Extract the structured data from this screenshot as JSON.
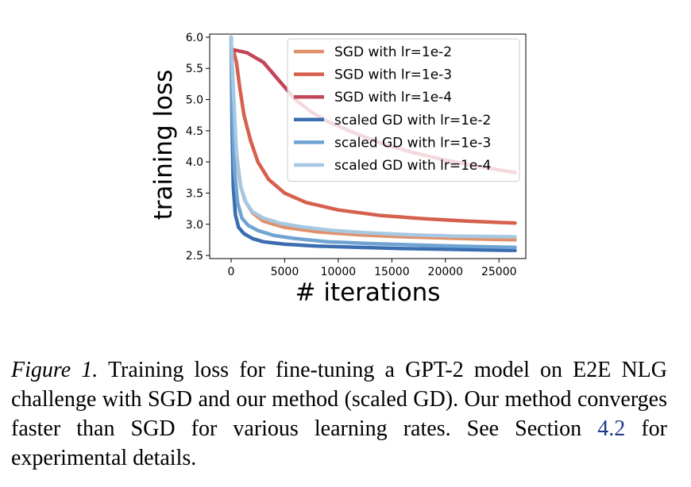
{
  "chart_data": {
    "type": "line",
    "xlabel": "# iterations",
    "ylabel": "training loss",
    "xlim": [
      -2000,
      27500
    ],
    "ylim": [
      2.45,
      6.05
    ],
    "xticks": [
      0,
      5000,
      10000,
      15000,
      20000,
      25000
    ],
    "xtick_labels": [
      "0",
      "5000",
      "10000",
      "15000",
      "20000",
      "25000"
    ],
    "yticks": [
      2.5,
      3.0,
      3.5,
      4.0,
      4.5,
      5.0,
      5.5,
      6.0
    ],
    "ytick_labels": [
      "2.5",
      "3.0",
      "3.5",
      "4.0",
      "4.5",
      "5.0",
      "5.5",
      "6.0"
    ],
    "grid": false,
    "legend_position": "top-right",
    "series": [
      {
        "name": "SGD with lr=1e-2",
        "color": "#e0916a",
        "x": [
          0,
          300,
          600,
          900,
          1300,
          2000,
          3000,
          5000,
          8000,
          12000,
          16000,
          20000,
          24000,
          26500
        ],
        "y": [
          5.8,
          4.6,
          3.95,
          3.6,
          3.38,
          3.18,
          3.05,
          2.95,
          2.88,
          2.83,
          2.8,
          2.78,
          2.76,
          2.75
        ]
      },
      {
        "name": "SGD with lr=1e-3",
        "color": "#d6604d",
        "x": [
          200,
          500,
          800,
          1200,
          1800,
          2500,
          3500,
          5000,
          7000,
          10000,
          14000,
          18000,
          22000,
          26500
        ],
        "y": [
          5.8,
          5.6,
          5.2,
          4.75,
          4.35,
          4.0,
          3.72,
          3.5,
          3.35,
          3.23,
          3.14,
          3.09,
          3.05,
          3.02
        ]
      },
      {
        "name": "SGD with lr=1e-4",
        "color": "#c2455b",
        "x": [
          200,
          1500,
          3000,
          4500,
          6000,
          7500,
          9000,
          11000,
          14000,
          17000,
          20000,
          23000,
          26500
        ],
        "y": [
          5.8,
          5.75,
          5.6,
          5.3,
          5.0,
          4.8,
          4.65,
          4.5,
          4.3,
          4.15,
          4.03,
          3.93,
          3.83
        ]
      },
      {
        "name": "scaled GD with lr=1e-2",
        "color": "#3a6eb0",
        "x": [
          0,
          100,
          200,
          400,
          700,
          1200,
          2000,
          3000,
          5000,
          8000,
          12000,
          16000,
          20000,
          26500
        ],
        "y": [
          6.0,
          4.5,
          3.6,
          3.15,
          2.95,
          2.85,
          2.77,
          2.72,
          2.68,
          2.65,
          2.63,
          2.61,
          2.6,
          2.58
        ]
      },
      {
        "name": "scaled GD with lr=1e-3",
        "color": "#6ea3d2",
        "x": [
          0,
          150,
          300,
          600,
          1000,
          1600,
          2500,
          4000,
          6000,
          9000,
          13000,
          17000,
          21000,
          26500
        ],
        "y": [
          6.0,
          4.7,
          3.9,
          3.35,
          3.1,
          2.98,
          2.9,
          2.82,
          2.77,
          2.72,
          2.69,
          2.67,
          2.65,
          2.63
        ]
      },
      {
        "name": "scaled GD with lr=1e-4",
        "color": "#a6c8e2",
        "x": [
          0,
          200,
          500,
          900,
          1400,
          2000,
          3000,
          4500,
          6500,
          9500,
          13000,
          17000,
          21000,
          26500
        ],
        "y": [
          6.0,
          5.2,
          4.15,
          3.6,
          3.35,
          3.2,
          3.1,
          3.02,
          2.96,
          2.9,
          2.86,
          2.83,
          2.81,
          2.8
        ]
      }
    ]
  },
  "caption": {
    "figure_label": "Figure 1.",
    "text_before_ref": " Training loss for fine-tuning a GPT-2 model on E2E NLG challenge with SGD and our method (scaled GD). Our method converges faster than SGD for various learning rates. See Section ",
    "ref": "4.2",
    "text_after_ref": " for experimental details."
  }
}
